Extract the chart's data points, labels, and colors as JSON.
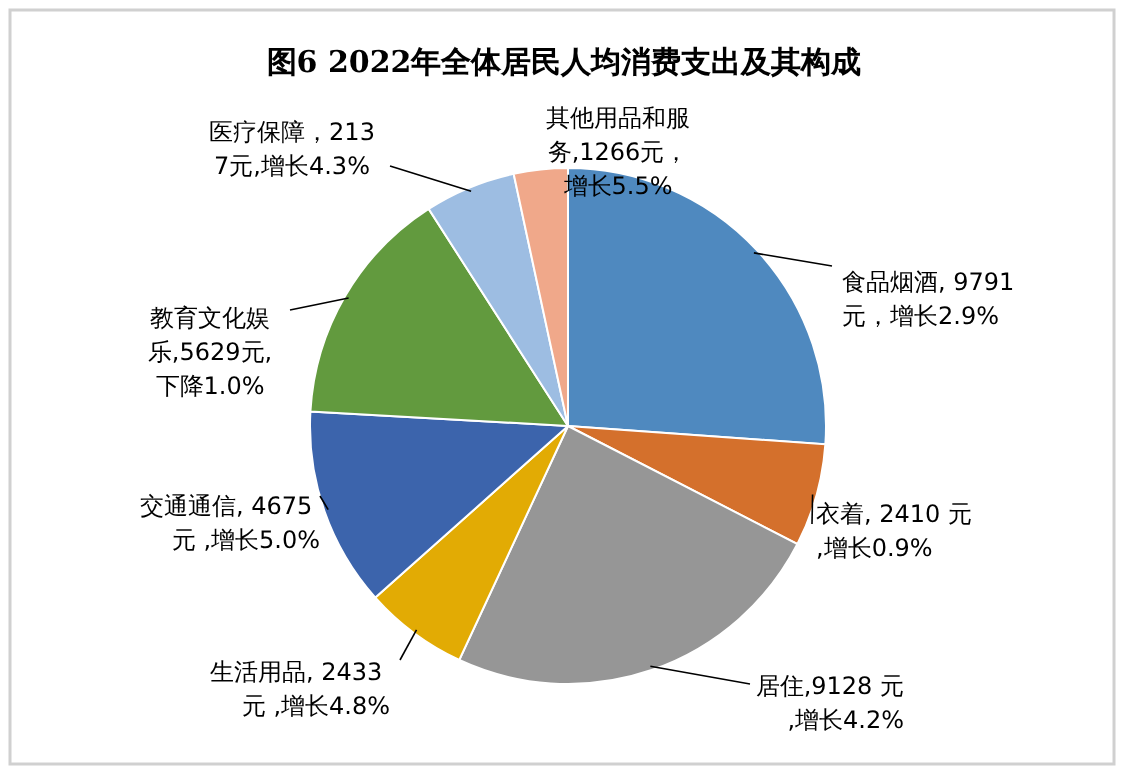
{
  "chart_data": {
    "type": "pie",
    "title": "图6 2022年全体居民人均消费支出及其构成",
    "categories": [
      "食品烟酒, 9791 元，增长2.9%",
      "衣着, 2410 元 ,增长0.9%",
      "居住,9128 元,增长4.2%",
      "生活用品, 2433 元 ,增长4.8%",
      "交通通信, 4675 元 ,增长5.0%",
      "教育文化娱乐,5629元,下降1.0%",
      "医疗保障，2137元,增长4.3%",
      "其他用品和服务,1266元，增长5.5%"
    ],
    "values": [
      9791,
      2410,
      9128,
      2433,
      4675,
      5629,
      2137,
      1266
    ],
    "colors": [
      "#4f89bf",
      "#d4702c",
      "#969696",
      "#e2ab04",
      "#3c64ac",
      "#629a3e",
      "#9dbde2",
      "#f0a88a"
    ]
  }
}
